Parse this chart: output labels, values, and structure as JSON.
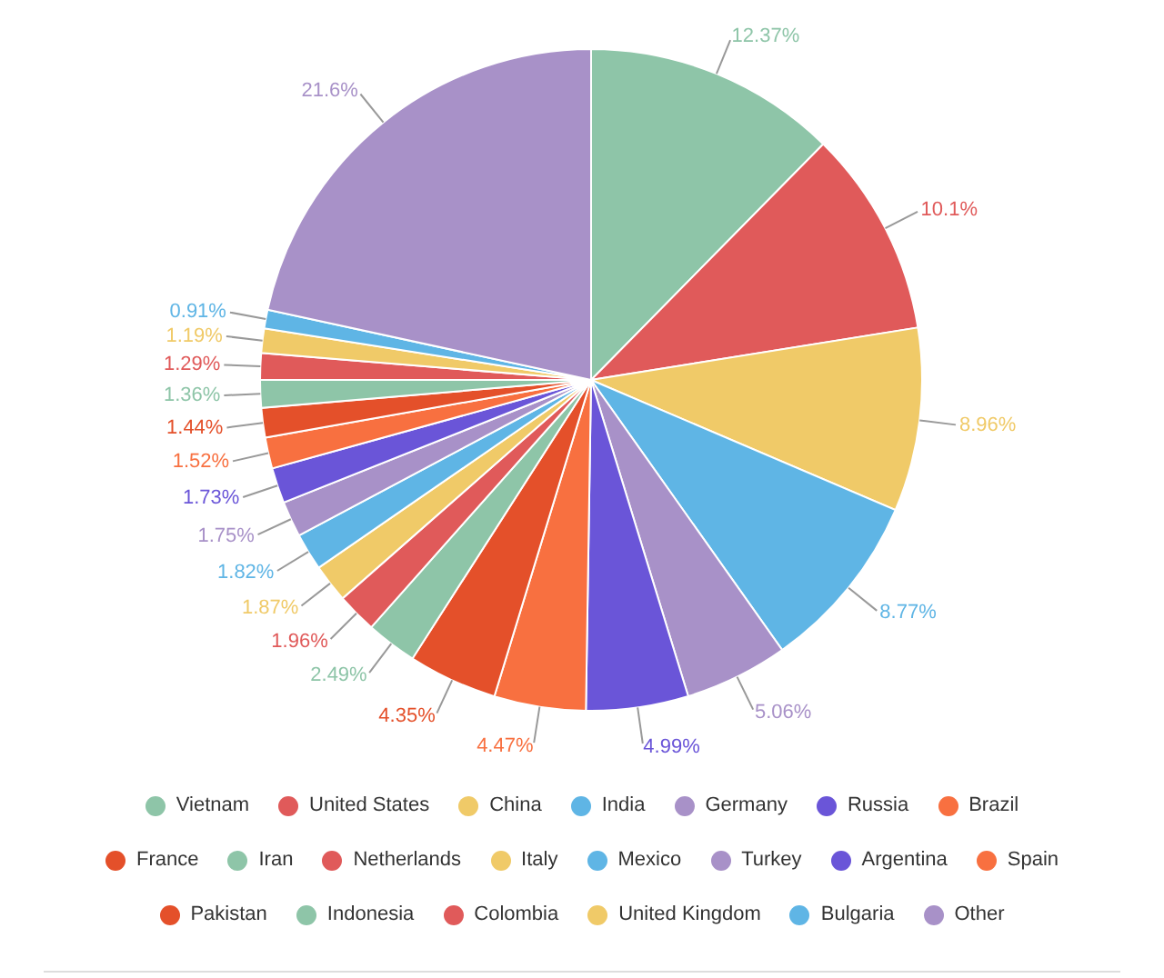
{
  "chart_data": {
    "type": "pie",
    "categories": [
      "Vietnam",
      "United States",
      "China",
      "India",
      "Germany",
      "Russia",
      "Brazil",
      "France",
      "Iran",
      "Netherlands",
      "Italy",
      "Mexico",
      "Turkey",
      "Argentina",
      "Spain",
      "Pakistan",
      "Indonesia",
      "Colombia",
      "United Kingdom",
      "Bulgaria",
      "Other"
    ],
    "values": [
      12.37,
      10.1,
      8.96,
      8.77,
      5.06,
      4.99,
      4.47,
      4.35,
      2.49,
      1.96,
      1.87,
      1.82,
      1.75,
      1.73,
      1.52,
      1.44,
      1.36,
      1.29,
      1.19,
      0.91,
      21.6
    ],
    "value_labels": [
      "12.37%",
      "10.1%",
      "8.96%",
      "8.77%",
      "5.06%",
      "4.99%",
      "4.47%",
      "4.35%",
      "2.49%",
      "1.96%",
      "1.87%",
      "1.82%",
      "1.75%",
      "1.73%",
      "1.52%",
      "1.44%",
      "1.36%",
      "1.29%",
      "1.19%",
      "0.91%",
      "21.6%"
    ],
    "colors": [
      "#8ec5a8",
      "#e05a5a",
      "#f0ca68",
      "#5fb5e5",
      "#a891c8",
      "#6a55d8",
      "#f87040",
      "#e4502a",
      "#8ec5a8",
      "#e05a5a",
      "#f0ca68",
      "#5fb5e5",
      "#a891c8",
      "#6a55d8",
      "#f87040",
      "#e4502a",
      "#8ec5a8",
      "#e05a5a",
      "#f0ca68",
      "#5fb5e5",
      "#a891c8"
    ],
    "legend": "bottom"
  }
}
